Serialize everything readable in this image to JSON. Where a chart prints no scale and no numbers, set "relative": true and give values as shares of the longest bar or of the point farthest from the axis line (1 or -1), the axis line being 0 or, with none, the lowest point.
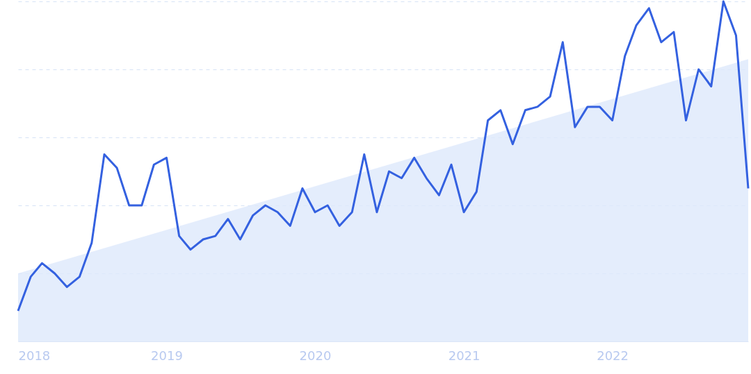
{
  "chart_data": {
    "type": "line",
    "relative": true,
    "grid": "y",
    "x": [
      "2018-01",
      "2018-02",
      "2018-03",
      "2018-04",
      "2018-05",
      "2018-06",
      "2018-07",
      "2018-08",
      "2018-09",
      "2018-10",
      "2018-11",
      "2018-12",
      "2019-01",
      "2019-02",
      "2019-03",
      "2019-04",
      "2019-05",
      "2019-06",
      "2019-07",
      "2019-08",
      "2019-09",
      "2019-10",
      "2019-11",
      "2019-12",
      "2020-01",
      "2020-02",
      "2020-03",
      "2020-04",
      "2020-05",
      "2020-06",
      "2020-07",
      "2020-08",
      "2020-09",
      "2020-10",
      "2020-11",
      "2020-12",
      "2021-01",
      "2021-02",
      "2021-03",
      "2021-04",
      "2021-05",
      "2021-06",
      "2021-07",
      "2021-08",
      "2021-09",
      "2021-10",
      "2021-11",
      "2021-12",
      "2022-01",
      "2022-02",
      "2022-03",
      "2022-04",
      "2022-05",
      "2022-06",
      "2022-07",
      "2022-08",
      "2022-09",
      "2022-10",
      "2022-11",
      "2022-12"
    ],
    "xlim": [
      "2018-01",
      "2022-12"
    ],
    "xticks": [
      {
        "value": "2018-01",
        "label": "2018"
      },
      {
        "value": "2019-01",
        "label": "2019"
      },
      {
        "value": "2020-01",
        "label": "2020"
      },
      {
        "value": "2021-01",
        "label": "2021"
      },
      {
        "value": "2022-01",
        "label": "2022"
      }
    ],
    "series": [
      {
        "type": "area",
        "color": "#dde9fb",
        "x": [
          "2018-01",
          "2022-12"
        ],
        "values": [
          0.2,
          0.83
        ]
      },
      {
        "color": "#3461e0",
        "values": [
          0.09,
          0.19,
          0.23,
          0.2,
          0.16,
          0.19,
          0.29,
          0.55,
          0.51,
          0.4,
          0.4,
          0.52,
          0.54,
          0.31,
          0.27,
          0.3,
          0.31,
          0.36,
          0.3,
          0.37,
          0.4,
          0.38,
          0.34,
          0.45,
          0.38,
          0.4,
          0.34,
          0.38,
          0.55,
          0.38,
          0.5,
          0.48,
          0.54,
          0.48,
          0.43,
          0.52,
          0.38,
          0.44,
          0.65,
          0.68,
          0.58,
          0.68,
          0.69,
          0.72,
          0.88,
          0.63,
          0.69,
          0.69,
          0.65,
          0.84,
          0.93,
          0.98,
          0.88,
          0.91,
          0.65,
          0.8,
          0.75,
          1,
          0.9,
          0.45
        ]
      }
    ]
  }
}
